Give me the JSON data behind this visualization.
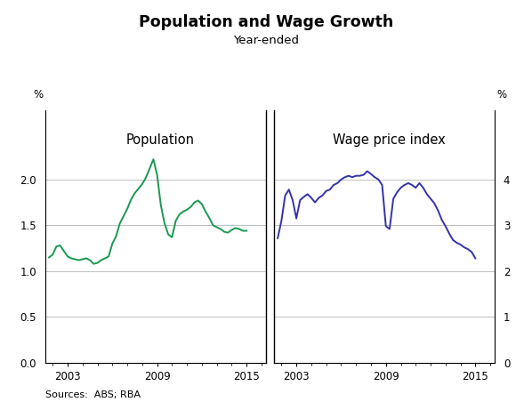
{
  "title": "Population and Wage Growth",
  "subtitle": "Year-ended",
  "sources": "Sources:  ABS; RBA",
  "pop_label": "Population",
  "wage_label": "Wage price index",
  "pop_color": "#1a9850",
  "wage_color": "#3333aa",
  "left_ylabel": "%",
  "right_ylabel": "%",
  "pop_ylim": [
    0.0,
    2.75
  ],
  "wage_ylim": [
    0.0,
    5.5
  ],
  "pop_yticks": [
    0.0,
    0.5,
    1.0,
    1.5,
    2.0
  ],
  "wage_yticks": [
    0,
    1,
    2,
    3,
    4
  ],
  "pop_data": {
    "years": [
      2001.75,
      2002.0,
      2002.25,
      2002.5,
      2002.75,
      2003.0,
      2003.25,
      2003.5,
      2003.75,
      2004.0,
      2004.25,
      2004.5,
      2004.75,
      2005.0,
      2005.25,
      2005.5,
      2005.75,
      2006.0,
      2006.25,
      2006.5,
      2006.75,
      2007.0,
      2007.25,
      2007.5,
      2007.75,
      2008.0,
      2008.25,
      2008.5,
      2008.75,
      2009.0,
      2009.25,
      2009.5,
      2009.75,
      2010.0,
      2010.25,
      2010.5,
      2010.75,
      2011.0,
      2011.25,
      2011.5,
      2011.75,
      2012.0,
      2012.25,
      2012.5,
      2012.75,
      2013.0,
      2013.25,
      2013.5,
      2013.75,
      2014.0,
      2014.25,
      2014.5,
      2014.75,
      2015.0
    ],
    "values": [
      1.15,
      1.18,
      1.27,
      1.28,
      1.22,
      1.16,
      1.14,
      1.13,
      1.12,
      1.13,
      1.14,
      1.12,
      1.08,
      1.09,
      1.12,
      1.14,
      1.16,
      1.3,
      1.38,
      1.52,
      1.6,
      1.68,
      1.78,
      1.85,
      1.9,
      1.95,
      2.02,
      2.12,
      2.22,
      2.05,
      1.72,
      1.52,
      1.4,
      1.37,
      1.55,
      1.62,
      1.65,
      1.67,
      1.7,
      1.75,
      1.77,
      1.73,
      1.65,
      1.58,
      1.5,
      1.48,
      1.46,
      1.43,
      1.42,
      1.45,
      1.47,
      1.46,
      1.44,
      1.44
    ]
  },
  "wage_data": {
    "years": [
      2001.75,
      2002.0,
      2002.25,
      2002.5,
      2002.75,
      2003.0,
      2003.25,
      2003.5,
      2003.75,
      2004.0,
      2004.25,
      2004.5,
      2004.75,
      2005.0,
      2005.25,
      2005.5,
      2005.75,
      2006.0,
      2006.25,
      2006.5,
      2006.75,
      2007.0,
      2007.25,
      2007.5,
      2007.75,
      2008.0,
      2008.25,
      2008.5,
      2008.75,
      2009.0,
      2009.25,
      2009.5,
      2009.75,
      2010.0,
      2010.25,
      2010.5,
      2010.75,
      2011.0,
      2011.25,
      2011.5,
      2011.75,
      2012.0,
      2012.25,
      2012.5,
      2012.75,
      2013.0,
      2013.25,
      2013.5,
      2013.75,
      2014.0,
      2014.25,
      2014.5,
      2014.75,
      2015.0
    ],
    "values": [
      2.72,
      3.1,
      3.65,
      3.78,
      3.55,
      3.15,
      3.55,
      3.62,
      3.68,
      3.6,
      3.5,
      3.6,
      3.65,
      3.75,
      3.78,
      3.88,
      3.92,
      4.0,
      4.05,
      4.08,
      4.05,
      4.08,
      4.08,
      4.1,
      4.18,
      4.12,
      4.05,
      4.0,
      3.88,
      2.98,
      2.92,
      3.58,
      3.72,
      3.82,
      3.88,
      3.92,
      3.88,
      3.82,
      3.92,
      3.82,
      3.68,
      3.58,
      3.48,
      3.32,
      3.12,
      2.98,
      2.82,
      2.68,
      2.62,
      2.58,
      2.52,
      2.48,
      2.42,
      2.28
    ]
  },
  "xlim": [
    2001.5,
    2016.3
  ],
  "xticks": [
    2003,
    2009,
    2015
  ],
  "xtick_labels": [
    "2003",
    "2009",
    "2015"
  ]
}
